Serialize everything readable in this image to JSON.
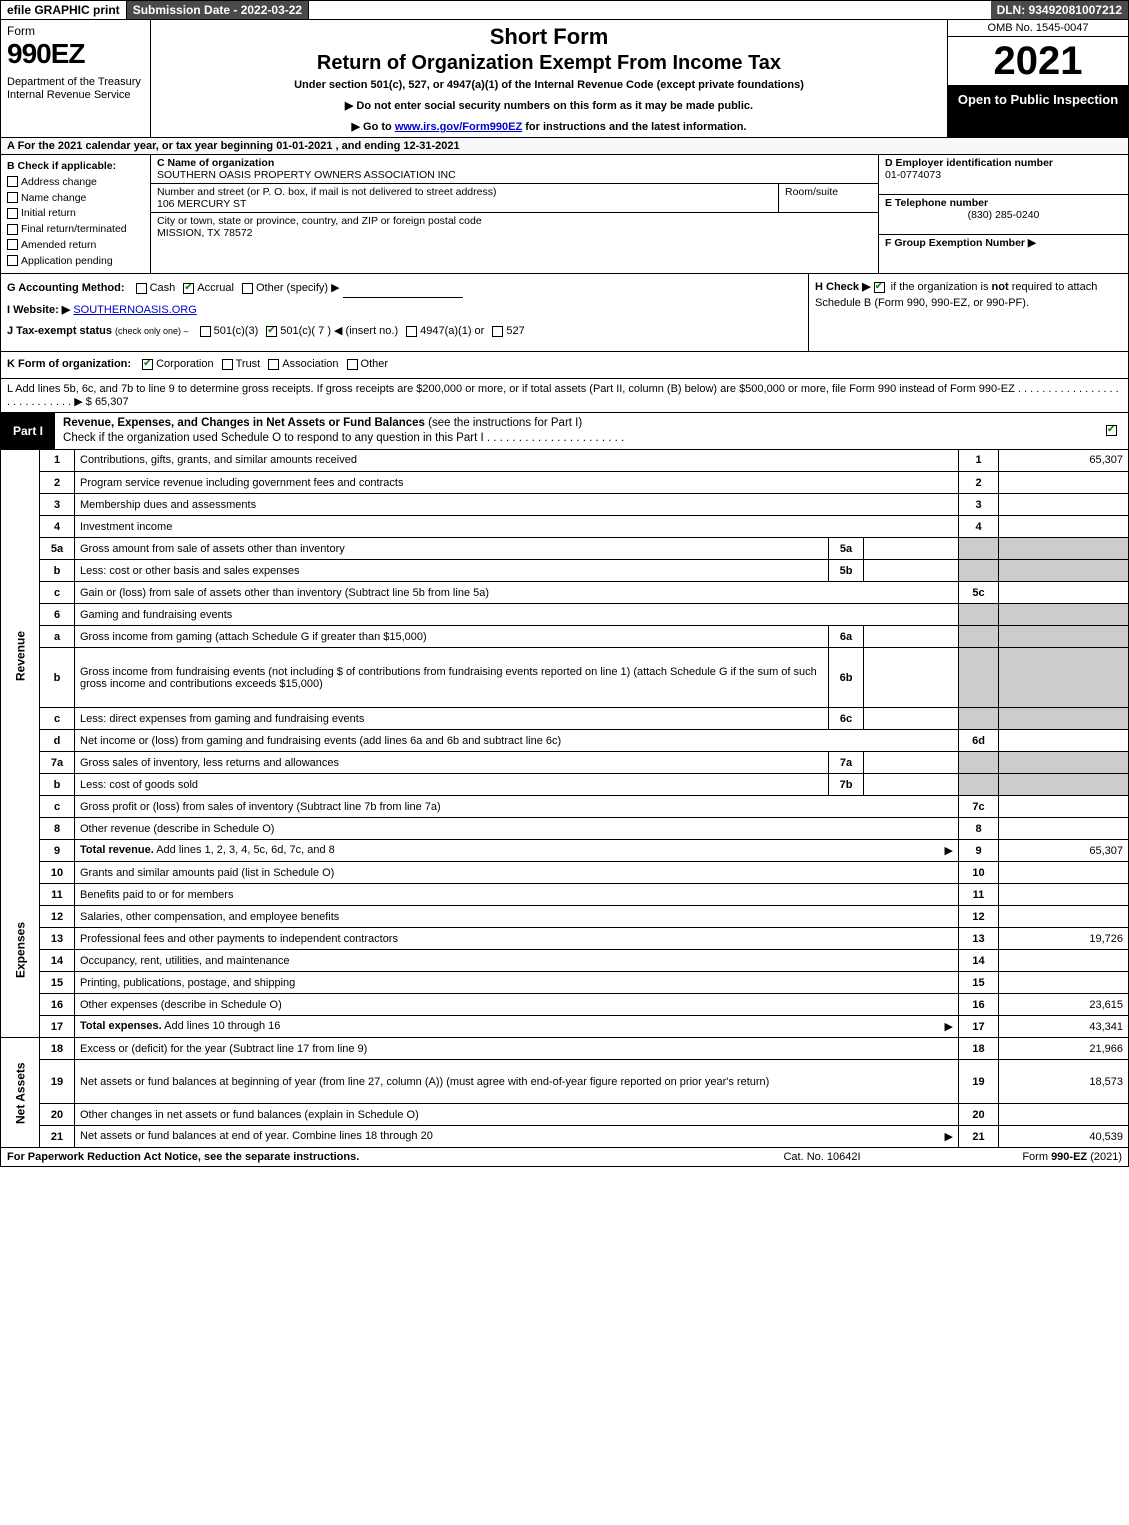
{
  "topbar": {
    "efile": "efile GRAPHIC print",
    "submission_label": "Submission Date - 2022-03-22",
    "dln": "DLN: 93492081007212"
  },
  "header": {
    "form_label": "Form",
    "form_no": "990EZ",
    "dept": "Department of the Treasury\nInternal Revenue Service",
    "title1": "Short Form",
    "title2": "Return of Organization Exempt From Income Tax",
    "subtitle": "Under section 501(c), 527, or 4947(a)(1) of the Internal Revenue Code (except private foundations)",
    "notice1": "▶ Do not enter social security numbers on this form as it may be made public.",
    "notice2_pre": "▶ Go to ",
    "notice2_link": "www.irs.gov/Form990EZ",
    "notice2_post": " for instructions and the latest information.",
    "omb": "OMB No. 1545-0047",
    "year": "2021",
    "inspection": "Open to Public Inspection"
  },
  "lineA": "A  For the 2021 calendar year, or tax year beginning 01-01-2021 , and ending 12-31-2021",
  "colB": {
    "hdr": "B  Check if applicable:",
    "opts": [
      "Address change",
      "Name change",
      "Initial return",
      "Final return/terminated",
      "Amended return",
      "Application pending"
    ]
  },
  "colC": {
    "c_label": "C Name of organization",
    "c_value": "SOUTHERN OASIS PROPERTY OWNERS ASSOCIATION INC",
    "addr_label": "Number and street (or P. O. box, if mail is not delivered to street address)",
    "addr_value": "106 MERCURY ST",
    "room_label": "Room/suite",
    "city_label": "City or town, state or province, country, and ZIP or foreign postal code",
    "city_value": "MISSION, TX  78572"
  },
  "colD": {
    "d_label": "D Employer identification number",
    "d_value": "01-0774073",
    "e_label": "E Telephone number",
    "e_value": "(830) 285-0240",
    "f_label": "F Group Exemption Number  ▶"
  },
  "rowG": {
    "label": "G Accounting Method:",
    "opts": [
      "Cash",
      "Accrual",
      "Other (specify) ▶"
    ],
    "checked": 1
  },
  "rowH": {
    "text_pre": "H  Check ▶ ",
    "text_post": " if the organization is ",
    "not": "not",
    "rest": " required to attach Schedule B (Form 990, 990-EZ, or 990-PF).",
    "checked": true
  },
  "rowI": {
    "label": "I Website: ▶",
    "value": "SOUTHERNOASIS.ORG"
  },
  "rowJ": {
    "label": "J Tax-exempt status",
    "sub": "(check only one) –",
    "opts": [
      "501(c)(3)",
      "501(c)( 7 ) ◀ (insert no.)",
      "4947(a)(1) or",
      "527"
    ],
    "checked": 1
  },
  "rowK": {
    "label": "K Form of organization:",
    "opts": [
      "Corporation",
      "Trust",
      "Association",
      "Other"
    ],
    "checked": 0
  },
  "rowL": {
    "text": "L Add lines 5b, 6c, and 7b to line 9 to determine gross receipts. If gross receipts are $200,000 or more, or if total assets (Part II, column (B) below) are $500,000 or more, file Form 990 instead of Form 990-EZ . . . . . . . . . . . . . . . . . . . . . . . . . . . . ▶ $",
    "value": "65,307"
  },
  "part1": {
    "tab": "Part I",
    "title_bold": "Revenue, Expenses, and Changes in Net Assets or Fund Balances",
    "title_rest": " (see the instructions for Part I)",
    "check_line": "Check if the organization used Schedule O to respond to any question in this Part I . . . . . . . . . . . . . . . . . . . . . .",
    "checked": true
  },
  "sections": {
    "revenue_label": "Revenue",
    "expenses_label": "Expenses",
    "netassets_label": "Net Assets"
  },
  "lines": [
    {
      "sec": "rev",
      "no": "1",
      "desc": "Contributions, gifts, grants, and similar amounts received",
      "r": "1",
      "amt": "65,307"
    },
    {
      "sec": "rev",
      "no": "2",
      "desc": "Program service revenue including government fees and contracts",
      "r": "2",
      "amt": ""
    },
    {
      "sec": "rev",
      "no": "3",
      "desc": "Membership dues and assessments",
      "r": "3",
      "amt": ""
    },
    {
      "sec": "rev",
      "no": "4",
      "desc": "Investment income",
      "r": "4",
      "amt": ""
    },
    {
      "sec": "rev",
      "no": "5a",
      "desc": "Gross amount from sale of assets other than inventory",
      "sub": "5a",
      "subamt": "",
      "grey": true
    },
    {
      "sec": "rev",
      "no": "b",
      "desc": "Less: cost or other basis and sales expenses",
      "sub": "5b",
      "subamt": "",
      "grey": true
    },
    {
      "sec": "rev",
      "no": "c",
      "desc": "Gain or (loss) from sale of assets other than inventory (Subtract line 5b from line 5a)",
      "r": "5c",
      "amt": ""
    },
    {
      "sec": "rev",
      "no": "6",
      "desc": "Gaming and fundraising events",
      "span": true,
      "grey": true
    },
    {
      "sec": "rev",
      "no": "a",
      "desc": "Gross income from gaming (attach Schedule G if greater than $15,000)",
      "sub": "6a",
      "subamt": "",
      "grey": true
    },
    {
      "sec": "rev",
      "no": "b",
      "desc": "Gross income from fundraising events (not including $                    of contributions from fundraising events reported on line 1) (attach Schedule G if the sum of such gross income and contributions exceeds $15,000)",
      "sub": "6b",
      "subamt": "",
      "grey": true,
      "tall": true
    },
    {
      "sec": "rev",
      "no": "c",
      "desc": "Less: direct expenses from gaming and fundraising events",
      "sub": "6c",
      "subamt": "",
      "grey": true
    },
    {
      "sec": "rev",
      "no": "d",
      "desc": "Net income or (loss) from gaming and fundraising events (add lines 6a and 6b and subtract line 6c)",
      "r": "6d",
      "amt": ""
    },
    {
      "sec": "rev",
      "no": "7a",
      "desc": "Gross sales of inventory, less returns and allowances",
      "sub": "7a",
      "subamt": "",
      "grey": true
    },
    {
      "sec": "rev",
      "no": "b",
      "desc": "Less: cost of goods sold",
      "sub": "7b",
      "subamt": "",
      "grey": true
    },
    {
      "sec": "rev",
      "no": "c",
      "desc": "Gross profit or (loss) from sales of inventory (Subtract line 7b from line 7a)",
      "r": "7c",
      "amt": ""
    },
    {
      "sec": "rev",
      "no": "8",
      "desc": "Other revenue (describe in Schedule O)",
      "r": "8",
      "amt": ""
    },
    {
      "sec": "rev",
      "no": "9",
      "desc_bold": "Total revenue.",
      "desc": " Add lines 1, 2, 3, 4, 5c, 6d, 7c, and 8",
      "r": "9",
      "amt": "65,307",
      "arrow": true
    },
    {
      "sec": "exp",
      "no": "10",
      "desc": "Grants and similar amounts paid (list in Schedule O)",
      "r": "10",
      "amt": ""
    },
    {
      "sec": "exp",
      "no": "11",
      "desc": "Benefits paid to or for members",
      "r": "11",
      "amt": ""
    },
    {
      "sec": "exp",
      "no": "12",
      "desc": "Salaries, other compensation, and employee benefits",
      "r": "12",
      "amt": ""
    },
    {
      "sec": "exp",
      "no": "13",
      "desc": "Professional fees and other payments to independent contractors",
      "r": "13",
      "amt": "19,726"
    },
    {
      "sec": "exp",
      "no": "14",
      "desc": "Occupancy, rent, utilities, and maintenance",
      "r": "14",
      "amt": ""
    },
    {
      "sec": "exp",
      "no": "15",
      "desc": "Printing, publications, postage, and shipping",
      "r": "15",
      "amt": ""
    },
    {
      "sec": "exp",
      "no": "16",
      "desc": "Other expenses (describe in Schedule O)",
      "r": "16",
      "amt": "23,615"
    },
    {
      "sec": "exp",
      "no": "17",
      "desc_bold": "Total expenses.",
      "desc": " Add lines 10 through 16",
      "r": "17",
      "amt": "43,341",
      "arrow": true
    },
    {
      "sec": "net",
      "no": "18",
      "desc": "Excess or (deficit) for the year (Subtract line 17 from line 9)",
      "r": "18",
      "amt": "21,966"
    },
    {
      "sec": "net",
      "no": "19",
      "desc": "Net assets or fund balances at beginning of year (from line 27, column (A)) (must agree with end-of-year figure reported on prior year's return)",
      "r": "19",
      "amt": "18,573",
      "tall": true
    },
    {
      "sec": "net",
      "no": "20",
      "desc": "Other changes in net assets or fund balances (explain in Schedule O)",
      "r": "20",
      "amt": ""
    },
    {
      "sec": "net",
      "no": "21",
      "desc": "Net assets or fund balances at end of year. Combine lines 18 through 20",
      "r": "21",
      "amt": "40,539",
      "arrow": true
    }
  ],
  "footer": {
    "left": "For Paperwork Reduction Act Notice, see the separate instructions.",
    "center": "Cat. No. 10642I",
    "right_pre": "Form ",
    "right_bold": "990-EZ",
    "right_post": " (2021)"
  },
  "colors": {
    "dark": "#4a4a4a",
    "black": "#000000",
    "grey": "#cccccc",
    "link": "#0000cc",
    "check": "#0a7a0a"
  }
}
